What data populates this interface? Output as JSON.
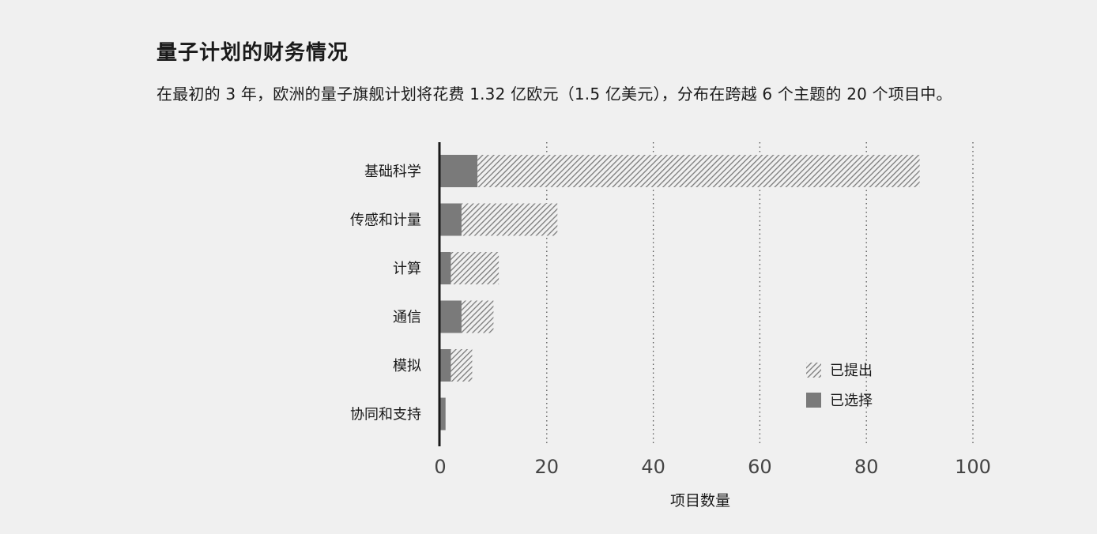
{
  "header": {
    "title": "量子计划的财务情况",
    "subtitle": "在最初的 3 年，欧洲的量子旗舰计划将花费 1.32 亿欧元（1.5 亿美元），分布在跨越 6 个主题的 20 个项目中。"
  },
  "colors": {
    "background": "#f0f0f0",
    "selected": "#7a7a7a",
    "proposed_hatch": "#7a7a7a",
    "axis": "#1a1a1a",
    "grid": "#555555"
  },
  "chart_data": {
    "type": "bar",
    "orientation": "horizontal",
    "stacked": true,
    "categories": [
      "基础科学",
      "传感和计量",
      "计算",
      "通信",
      "模拟",
      "协同和支持"
    ],
    "series": [
      {
        "name": "已选择",
        "values": [
          7,
          4,
          2,
          4,
          2,
          1
        ]
      },
      {
        "name": "已提出",
        "values": [
          83,
          18,
          9,
          6,
          4,
          0
        ]
      }
    ],
    "xlabel": "项目数量",
    "ylabel": "",
    "xlim": [
      0,
      100
    ],
    "xticks": [
      0,
      20,
      40,
      60,
      80,
      100
    ],
    "grid": true,
    "legend": {
      "position": "right",
      "entries": [
        {
          "name": "已提出",
          "style": "hatched"
        },
        {
          "name": "已选择",
          "style": "solid"
        }
      ]
    }
  }
}
